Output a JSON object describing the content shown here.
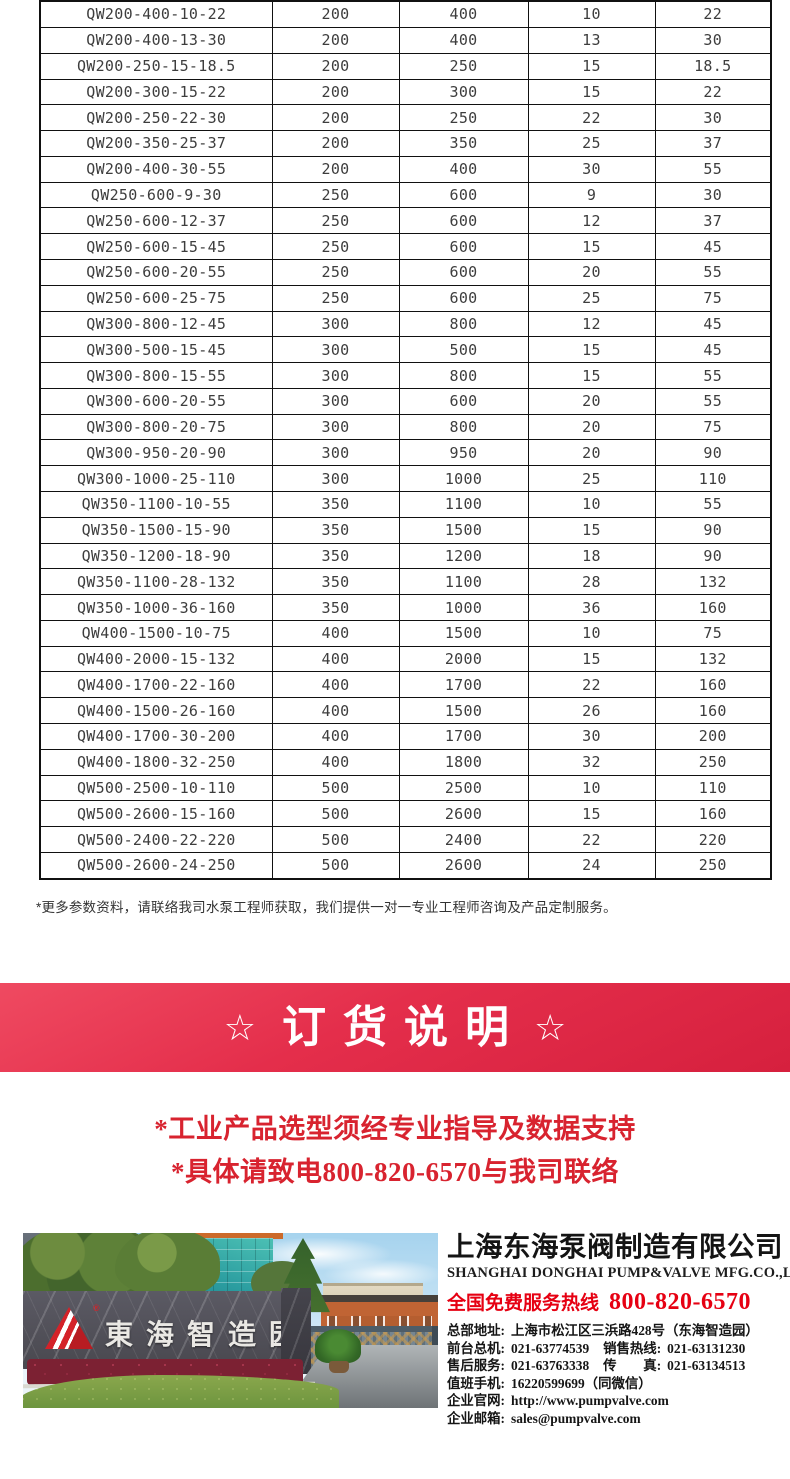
{
  "table": {
    "rows": [
      [
        "QW200-400-10-22",
        "200",
        "400",
        "10",
        "22"
      ],
      [
        "QW200-400-13-30",
        "200",
        "400",
        "13",
        "30"
      ],
      [
        "QW200-250-15-18.5",
        "200",
        "250",
        "15",
        "18.5"
      ],
      [
        "QW200-300-15-22",
        "200",
        "300",
        "15",
        "22"
      ],
      [
        "QW200-250-22-30",
        "200",
        "250",
        "22",
        "30"
      ],
      [
        "QW200-350-25-37",
        "200",
        "350",
        "25",
        "37"
      ],
      [
        "QW200-400-30-55",
        "200",
        "400",
        "30",
        "55"
      ],
      [
        "QW250-600-9-30",
        "250",
        "600",
        "9",
        "30"
      ],
      [
        "QW250-600-12-37",
        "250",
        "600",
        "12",
        "37"
      ],
      [
        "QW250-600-15-45",
        "250",
        "600",
        "15",
        "45"
      ],
      [
        "QW250-600-20-55",
        "250",
        "600",
        "20",
        "55"
      ],
      [
        "QW250-600-25-75",
        "250",
        "600",
        "25",
        "75"
      ],
      [
        "QW300-800-12-45",
        "300",
        "800",
        "12",
        "45"
      ],
      [
        "QW300-500-15-45",
        "300",
        "500",
        "15",
        "45"
      ],
      [
        "QW300-800-15-55",
        "300",
        "800",
        "15",
        "55"
      ],
      [
        "QW300-600-20-55",
        "300",
        "600",
        "20",
        "55"
      ],
      [
        "QW300-800-20-75",
        "300",
        "800",
        "20",
        "75"
      ],
      [
        "QW300-950-20-90",
        "300",
        "950",
        "20",
        "90"
      ],
      [
        "QW300-1000-25-110",
        "300",
        "1000",
        "25",
        "110"
      ],
      [
        "QW350-1100-10-55",
        "350",
        "1100",
        "10",
        "55"
      ],
      [
        "QW350-1500-15-90",
        "350",
        "1500",
        "15",
        "90"
      ],
      [
        "QW350-1200-18-90",
        "350",
        "1200",
        "18",
        "90"
      ],
      [
        "QW350-1100-28-132",
        "350",
        "1100",
        "28",
        "132"
      ],
      [
        "QW350-1000-36-160",
        "350",
        "1000",
        "36",
        "160"
      ],
      [
        "QW400-1500-10-75",
        "400",
        "1500",
        "10",
        "75"
      ],
      [
        "QW400-2000-15-132",
        "400",
        "2000",
        "15",
        "132"
      ],
      [
        "QW400-1700-22-160",
        "400",
        "1700",
        "22",
        "160"
      ],
      [
        "QW400-1500-26-160",
        "400",
        "1500",
        "26",
        "160"
      ],
      [
        "QW400-1700-30-200",
        "400",
        "1700",
        "30",
        "200"
      ],
      [
        "QW400-1800-32-250",
        "400",
        "1800",
        "32",
        "250"
      ],
      [
        "QW500-2500-10-110",
        "500",
        "2500",
        "10",
        "110"
      ],
      [
        "QW500-2600-15-160",
        "500",
        "2600",
        "15",
        "160"
      ],
      [
        "QW500-2400-22-220",
        "500",
        "2400",
        "22",
        "220"
      ],
      [
        "QW500-2600-24-250",
        "500",
        "2600",
        "24",
        "250"
      ]
    ]
  },
  "note": "*更多参数资料，请联络我司水泵工程师获取，我们提供一对一专业工程师咨询及产品定制服务。",
  "banner": {
    "star_left": "☆",
    "title": "订货说明",
    "star_right": "☆",
    "bg_color": "#e42e4b",
    "text_color": "#ffffff"
  },
  "notice": {
    "line1": "*工业产品选型须经专业指导及数据支持",
    "line2": "*具体请致电800-820-6570与我司联络",
    "color": "#d8232f"
  },
  "company": {
    "name_cn": "上海东海泵阀制造有限公司",
    "name_en": "SHANGHAI DONGHAI PUMP&VALVE MFG.CO.,LTD.",
    "hotline_label": "全国免费服务热线",
    "hotline_number": "800-820-6570",
    "hotline_color": "#e60012",
    "contact_lines": [
      {
        "p1_label": "总部地址:",
        "p1_value": "上海市松江区三浜路428号（东海智造园）",
        "p1_link": false,
        "p2_label": "",
        "p2_value": ""
      },
      {
        "p1_label": "前台总机:",
        "p1_value": "021-63774539",
        "p1_link": false,
        "p2_label": "销售热线:",
        "p2_value": "021-63131230"
      },
      {
        "p1_label": "售后服务:",
        "p1_value": "021-63763338",
        "p1_link": false,
        "p2_label": "传　　真:",
        "p2_value": "021-63134513"
      },
      {
        "p1_label": "值班手机:",
        "p1_value": "16220599699（同微信）",
        "p1_link": false,
        "p2_label": "",
        "p2_value": ""
      },
      {
        "p1_label": "企业官网:",
        "p1_value": "http://www.pumpvalve.com",
        "p1_link": true,
        "p2_label": "",
        "p2_value": ""
      },
      {
        "p1_label": "企业邮箱:",
        "p1_value": "sales@pumpvalve.com",
        "p1_link": true,
        "p2_label": "",
        "p2_value": ""
      }
    ]
  },
  "photo": {
    "sign_text": "東海智造园",
    "logo": "donghai-triangle-logo",
    "reg_mark": "®"
  }
}
